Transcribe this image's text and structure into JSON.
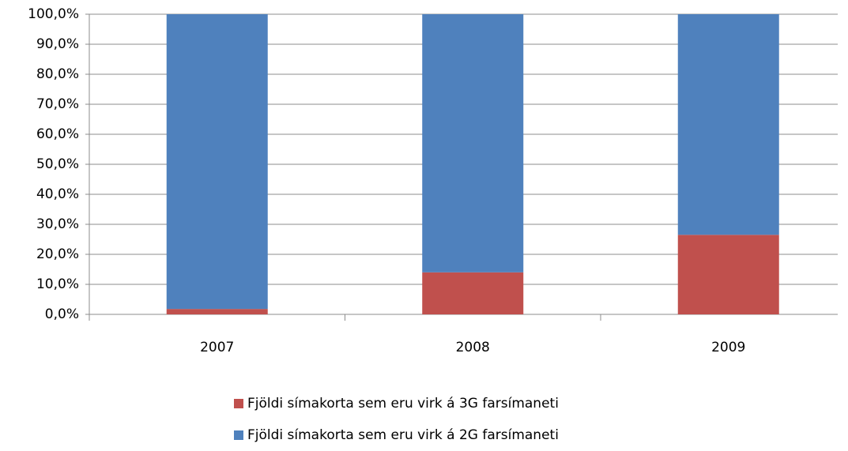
{
  "chart_data": {
    "type": "stacked_bar",
    "categories": [
      "2007",
      "2008",
      "2009"
    ],
    "series": [
      {
        "name": "Fjöldi símakorta  sem eru virk á 3G farsímaneti",
        "color": "#c0504d",
        "values": [
          1.8,
          14,
          26.5
        ]
      },
      {
        "name": "Fjöldi símakorta  sem eru virk á 2G farsímaneti",
        "color": "#4f81bd",
        "values": [
          98.2,
          86,
          73.5
        ]
      }
    ],
    "ylim": [
      0,
      100
    ],
    "yticks": [
      {
        "value": 0,
        "label": "0,0%"
      },
      {
        "value": 10,
        "label": "10,0%"
      },
      {
        "value": 20,
        "label": "20,0%"
      },
      {
        "value": 30,
        "label": "30,0%"
      },
      {
        "value": 40,
        "label": "40,0%"
      },
      {
        "value": 50,
        "label": "50,0%"
      },
      {
        "value": 60,
        "label": "60,0%"
      },
      {
        "value": 70,
        "label": "70,0%"
      },
      {
        "value": 80,
        "label": "80,0%"
      },
      {
        "value": 90,
        "label": "90,0%"
      },
      {
        "value": 100,
        "label": "100,0%"
      }
    ],
    "grid": true,
    "legend": "bottom"
  }
}
